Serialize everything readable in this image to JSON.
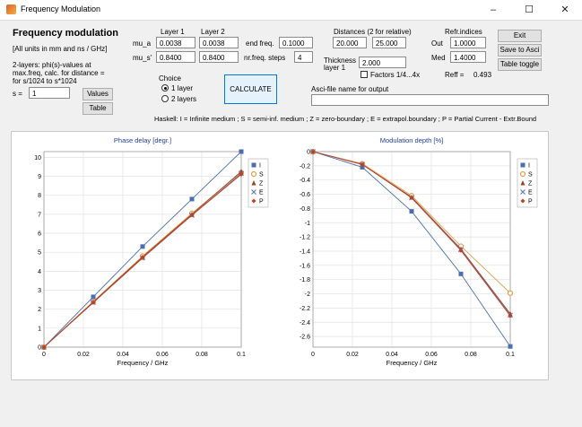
{
  "window": {
    "title": "Frequency Modulation",
    "minimize": "–",
    "maximize": "☐",
    "close": "✕"
  },
  "header": {
    "title": "Frequency modulation",
    "units_note": "[All units in mm and ns / GHz]"
  },
  "note": {
    "line1": "2-layers: phi(s)-values at",
    "line2": "max.freq, calc. for distance =",
    "line3": "for s/1024 to s*1024"
  },
  "s": {
    "label": "s =",
    "value": "1"
  },
  "buttons": {
    "values": "Values",
    "table": "Table",
    "calculate": "CALCULATE",
    "exit": "Exit",
    "save_ascii": "Save to Asci",
    "table_toggle": "Table toggle"
  },
  "layers": {
    "layer1_label": "Layer 1",
    "layer2_label": "Layer 2",
    "mua_label": "mu_a",
    "mus_label": "mu_s'",
    "mua1": "0.0038",
    "mua2": "0.0038",
    "mus1": "0.8400",
    "mus2": "0.8400"
  },
  "freq": {
    "end_label": "end freq.",
    "end_value": "0.1000",
    "steps_label": "nr.freq. steps",
    "steps_value": "4"
  },
  "distances": {
    "label": "Distances (2 for relative)",
    "d1": "20.000",
    "d2": "25.000"
  },
  "thickness": {
    "label1": "Thickness",
    "label2": "layer 1",
    "value": "2.000"
  },
  "factors": {
    "label": "Factors 1/4...4x",
    "checked": false
  },
  "refr": {
    "label": "Refr.indices",
    "out_label": "Out",
    "out_value": "1.0000",
    "med_label": "Med",
    "med_value": "1.4000"
  },
  "reff": {
    "label": "Reff =",
    "value": "0.493"
  },
  "choice": {
    "label": "Choice",
    "option1": "1 layer",
    "option2": "2 layers",
    "selected": "1 layer"
  },
  "ascii": {
    "label": "Asci-file name for output",
    "value": ""
  },
  "haskell": {
    "text": "Haskell:  I = Infinite medium ; S = semi-inf. medium ; Z = zero-boundary ; E = extrapol.boundary ; P = Partial Current - Extr.Bound"
  },
  "chart_data": [
    {
      "type": "line",
      "title": "Phase delay [degr.]",
      "xlabel": "Frequency / GHz",
      "ylabel": "",
      "x": [
        0,
        0.025,
        0.05,
        0.075,
        0.1
      ],
      "xticks": [
        0,
        0.02,
        0.04,
        0.06,
        0.08,
        0.1
      ],
      "yticks": [
        0,
        1,
        2,
        3,
        4,
        5,
        6,
        7,
        8,
        9,
        10
      ],
      "xlim": [
        0,
        0.1
      ],
      "ylim": [
        0,
        10.3
      ],
      "grid": true,
      "legend": "right",
      "series": [
        {
          "name": "I",
          "color": "#4a6fb0",
          "marker": "square",
          "values": [
            0,
            2.65,
            5.3,
            7.8,
            10.3
          ]
        },
        {
          "name": "S",
          "color": "#e0a050",
          "marker": "circle",
          "values": [
            0,
            2.4,
            4.8,
            7.05,
            9.2
          ]
        },
        {
          "name": "Z",
          "color": "#a04020",
          "marker": "triangle",
          "values": [
            0,
            2.38,
            4.75,
            7.0,
            9.25
          ]
        },
        {
          "name": "E",
          "color": "#5a7ab8",
          "marker": "cross",
          "values": [
            0,
            2.35,
            4.7,
            6.95,
            9.15
          ]
        },
        {
          "name": "P",
          "color": "#c04020",
          "marker": "diamond",
          "values": [
            0,
            2.35,
            4.7,
            6.95,
            9.1
          ]
        }
      ]
    },
    {
      "type": "line",
      "title": "Modulation depth [%]",
      "xlabel": "Frequency / GHz",
      "ylabel": "",
      "x": [
        0,
        0.025,
        0.05,
        0.075,
        0.1
      ],
      "xticks": [
        0,
        0.02,
        0.04,
        0.06,
        0.08,
        0.1
      ],
      "yticks": [
        0,
        -0.2,
        -0.4,
        -0.6,
        -0.8,
        -1,
        -1.2,
        -1.4,
        -1.6,
        -1.8,
        -2,
        -2.2,
        -2.4,
        -2.6
      ],
      "xlim": [
        0,
        0.1
      ],
      "ylim": [
        -2.75,
        0
      ],
      "grid": true,
      "legend": "right",
      "series": [
        {
          "name": "I",
          "color": "#4a6fb0",
          "marker": "square",
          "values": [
            0,
            -0.22,
            -0.84,
            -1.72,
            -2.74
          ]
        },
        {
          "name": "S",
          "color": "#e0a050",
          "marker": "circle",
          "values": [
            0,
            -0.17,
            -0.62,
            -1.33,
            -1.99
          ]
        },
        {
          "name": "Z",
          "color": "#a04020",
          "marker": "triangle",
          "values": [
            0,
            -0.18,
            -0.64,
            -1.37,
            -2.28
          ]
        },
        {
          "name": "E",
          "color": "#5a7ab8",
          "marker": "cross",
          "values": [
            0,
            -0.18,
            -0.65,
            -1.38,
            -2.3
          ]
        },
        {
          "name": "P",
          "color": "#c04020",
          "marker": "diamond",
          "values": [
            0,
            -0.18,
            -0.65,
            -1.39,
            -2.31
          ]
        }
      ]
    }
  ]
}
